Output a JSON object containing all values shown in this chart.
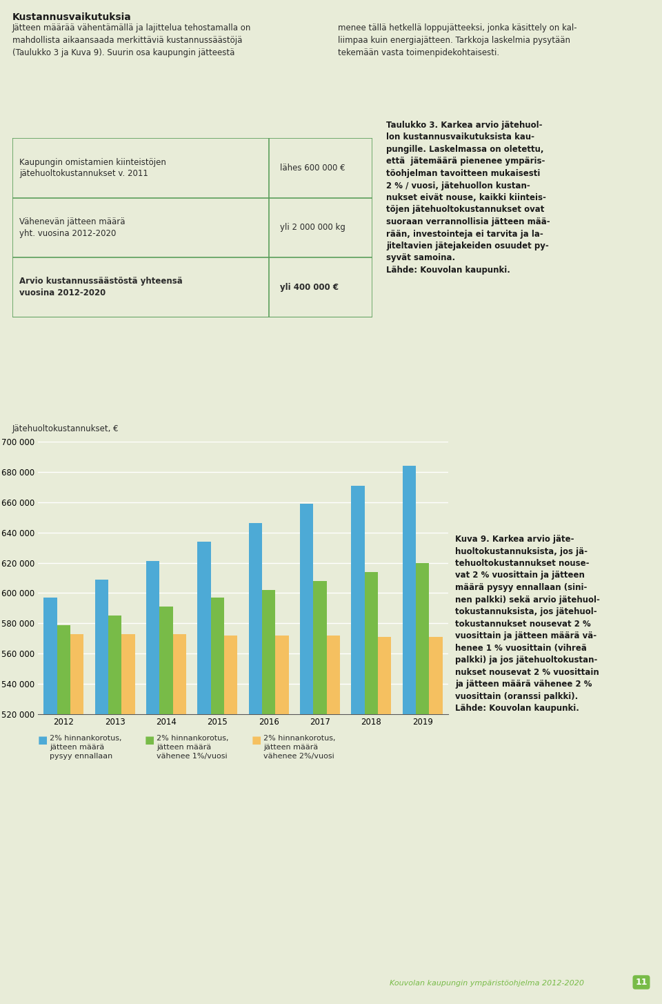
{
  "years": [
    2012,
    2013,
    2014,
    2015,
    2016,
    2017,
    2018,
    2019
  ],
  "blue_values": [
    597000,
    609000,
    621000,
    634000,
    646000,
    659000,
    671000,
    684000
  ],
  "green_values": [
    579000,
    585000,
    591000,
    597000,
    602000,
    608000,
    614000,
    620000
  ],
  "orange_values": [
    573000,
    573000,
    573000,
    572000,
    572000,
    572000,
    571000,
    571000
  ],
  "blue_color": "#4DAAD6",
  "green_color": "#78BB48",
  "orange_color": "#F5C060",
  "ylabel": "Jätehuoltokustannukset, €",
  "ylim_min": 520000,
  "ylim_max": 700000,
  "ytick_step": 20000,
  "background_color": "#E8ECD8",
  "grid_color": "#ffffff",
  "legend_blue": "2% hinnankorotus,\njätteen määrä\npysyy ennallaan",
  "legend_green": "2% hinnankorotus,\njätteen määrä\nvähenee 1%/vuosi",
  "legend_orange": "2% hinnankorotus,\njätteen määrä\nvähenee 2%/vuosi",
  "bar_width": 0.26,
  "table_border_color": "#5B9E5B",
  "title_text": "Kustannusvaikutuksia",
  "body_left": "Jätteen määrää vähentämällä ja lajittelua tehostamalla on\nmahdollista aikaansaada merkittäviä kustannussäästöjä\n(Taulukko 3 ja Kuva 9). Suurin osa kaupungin jätteestä",
  "body_right": "menee tällä hetkellä loppujätteeksi, jonka käsittely on kal-\nliimpaa kuin energiajätteen. Tarkkoja laskelmia pysytään\ntekemään vasta toimenpidekohtaisesti.",
  "table_row1_left": "Kaupungin omistamien kiinteistöjen\njätehuoltokustannukset v. 2011",
  "table_row1_right": "lähes 600 000 €",
  "table_row2_left": "Vähenevän jätteen määrä\nyht. vuosina 2012-2020",
  "table_row2_right": "yli 2 000 000 kg",
  "table_row3_left": "Arvio kustannussäästöstä yhteensä\nvuosina 2012-2020",
  "table_row3_right": "yli 400 000 €",
  "taulukko3_text": "Taulukko 3. Karkea arvio jätehuol-\nlon kustannusvaikutuksista kau-\npungille. Laskelmassa on oletettu,\nettä  jätemäärä pienenee ympäris-\ntöohjelman tavoitteen mukaisesti\n2 % / vuosi, jätehuollon kustan-\nnukset eivät nouse, kaikki kiinteis-\ntöjen jätehuoltokustannukset ovat\nsuoraan verrannollisia jätteen mää-\nrään, investointeja ei tarvita ja la-\njiteltavien jätejakeiden osuudet py-\nsyvät samoina.\nLähde: Kouvolan kaupunki.",
  "kuva9_text": "Kuva 9. Karkea arvio jäte-\nhuoltokustannuksista, jos jä-\ntehuoltokustannukset nouse-\nvat 2 % vuosittain ja jätteen\nmäärä pysyy ennallaan (sini-\nnen palkki) sekä arvio jätehuol-\ntokustannuksista, jos jätehuol-\ntokustannukset nousevat 2 %\nvuosittain ja jätteen määrä vä-\nhenee 1 % vuosittain (vihreä\npalkki) ja jos jätehuoltokustan-\nnukset nousevat 2 % vuosittain\nja jätteen määrä vähenee 2 %\nvuosittain (oranssi palkki).\nLähde: Kouvolan kaupunki.",
  "footer_text": "Kouvolan kaupungin ympäristöohjelma 2012-2020",
  "footer_num": "11"
}
